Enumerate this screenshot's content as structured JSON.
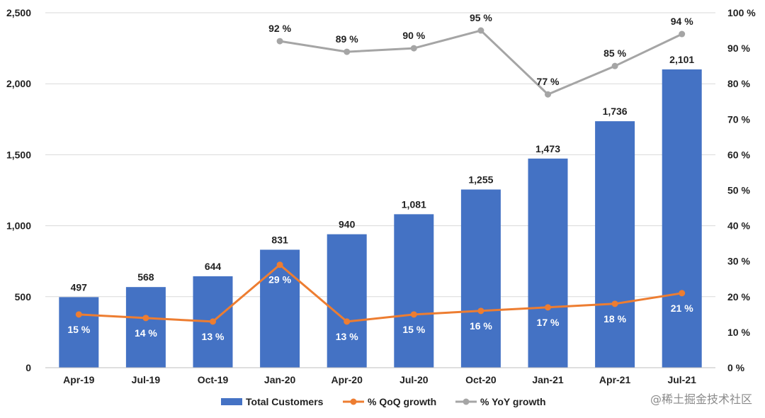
{
  "chart_data": {
    "type": "bar",
    "categories": [
      "Apr-19",
      "Jul-19",
      "Oct-19",
      "Jan-20",
      "Apr-20",
      "Jul-20",
      "Oct-20",
      "Jan-21",
      "Apr-21",
      "Jul-21"
    ],
    "series": [
      {
        "name": "Total Customers",
        "type": "bar",
        "axis": "left",
        "color": "#4472C4",
        "values": [
          497,
          568,
          644,
          831,
          940,
          1081,
          1255,
          1473,
          1736,
          2101
        ],
        "labels": [
          "497",
          "568",
          "644",
          "831",
          "940",
          "1,081",
          "1,255",
          "1,473",
          "1,736",
          "2,101"
        ]
      },
      {
        "name": "% QoQ growth",
        "type": "line",
        "axis": "right",
        "color": "#ED7D31",
        "values": [
          15,
          14,
          13,
          29,
          13,
          15,
          16,
          17,
          18,
          21
        ],
        "labels": [
          "15 %",
          "14 %",
          "13 %",
          "29 %",
          "13 %",
          "15 %",
          "16 %",
          "17 %",
          "18 %",
          "21 %"
        ]
      },
      {
        "name": "% YoY growth",
        "type": "line",
        "axis": "right",
        "color": "#A5A5A5",
        "values": [
          null,
          null,
          null,
          92,
          89,
          90,
          95,
          77,
          85,
          94
        ],
        "labels": [
          "",
          "",
          "",
          "92 %",
          "89 %",
          "90 %",
          "95 %",
          "77 %",
          "85 %",
          "94 %"
        ]
      }
    ],
    "y_left": {
      "ylim": [
        0,
        2500
      ],
      "ticks": [
        0,
        500,
        1000,
        1500,
        2000,
        2500
      ],
      "tick_labels": [
        "0",
        "500",
        "1,000",
        "1,500",
        "2,000",
        "2,500"
      ]
    },
    "y_right": {
      "ylim": [
        0,
        100
      ],
      "ticks": [
        0,
        10,
        20,
        30,
        40,
        50,
        60,
        70,
        80,
        90,
        100
      ],
      "tick_labels": [
        "0 %",
        "10 %",
        "20 %",
        "30 %",
        "40 %",
        "50 %",
        "60 %",
        "70 %",
        "80 %",
        "90 %",
        "100 %"
      ]
    },
    "grid": true,
    "legend_position": "bottom",
    "gridline_color": "#D9D9D9"
  },
  "watermark": "@稀土掘金技术社区"
}
